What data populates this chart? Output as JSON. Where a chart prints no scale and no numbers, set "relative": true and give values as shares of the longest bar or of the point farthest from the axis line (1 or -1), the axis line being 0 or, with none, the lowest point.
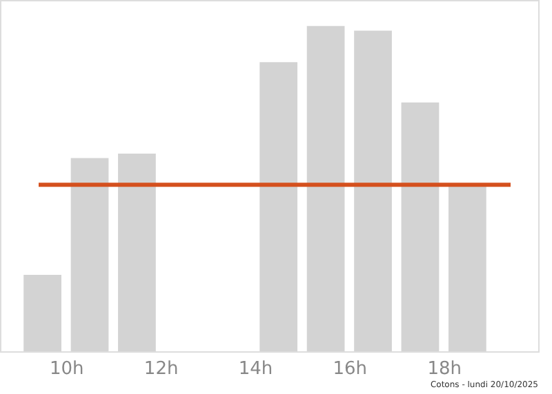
{
  "chart_data": {
    "type": "bar",
    "relative": true,
    "x": [
      9.5,
      10.5,
      11.5,
      14.5,
      15.5,
      16.5,
      17.5,
      18.5
    ],
    "values": [
      0.235,
      0.594,
      0.608,
      0.889,
      1.0,
      0.986,
      0.765,
      0.512
    ],
    "color": "#d3d3d3",
    "xlim": [
      8.6,
      20.0
    ],
    "xticks": [
      {
        "value": 10,
        "label": "10h"
      },
      {
        "value": 12,
        "label": "12h"
      },
      {
        "value": 14,
        "label": "14h"
      },
      {
        "value": 16,
        "label": "16h"
      },
      {
        "value": 18,
        "label": "18h"
      }
    ],
    "ref_lines": [
      {
        "axis": "y",
        "value": 0.512,
        "label": null,
        "color": "#d4501e"
      }
    ],
    "annotations": [
      "Cotons - lundi 20/10/2025"
    ],
    "grid": false
  }
}
